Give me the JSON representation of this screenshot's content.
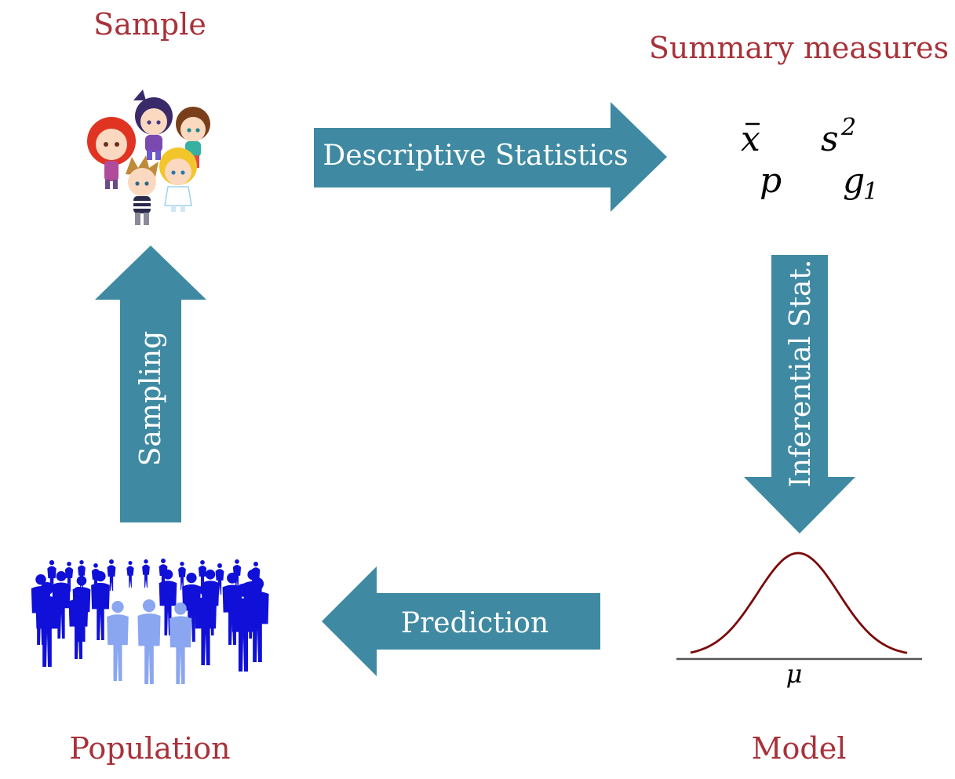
{
  "colors": {
    "label": "#a8323a",
    "arrow": "#3f8aa2",
    "curve": "#7a0a0a",
    "baseline": "#555555",
    "people_dark": "#1010d8",
    "people_light": "#8aa6f0"
  },
  "nodes": {
    "sample": {
      "label": "Sample",
      "icon": "children-cartoon-icon"
    },
    "summary": {
      "label": "Summary measures",
      "symbols": {
        "mean": "x",
        "variance_base": "s",
        "variance_exp": "2",
        "proportion": "p",
        "skew_base": "g",
        "skew_sub": "1"
      }
    },
    "model": {
      "label": "Model",
      "mu": "μ",
      "icon": "normal-distribution-curve-icon"
    },
    "population": {
      "label": "Population",
      "icon": "crowd-silhouette-icon"
    }
  },
  "arrows": {
    "descriptive": {
      "label": "Descriptive Statistics",
      "direction": "right"
    },
    "inferential": {
      "label": "Inferential Stat.",
      "direction": "down"
    },
    "prediction": {
      "label": "Prediction",
      "direction": "left"
    },
    "sampling": {
      "label": "Sampling",
      "direction": "up"
    }
  }
}
